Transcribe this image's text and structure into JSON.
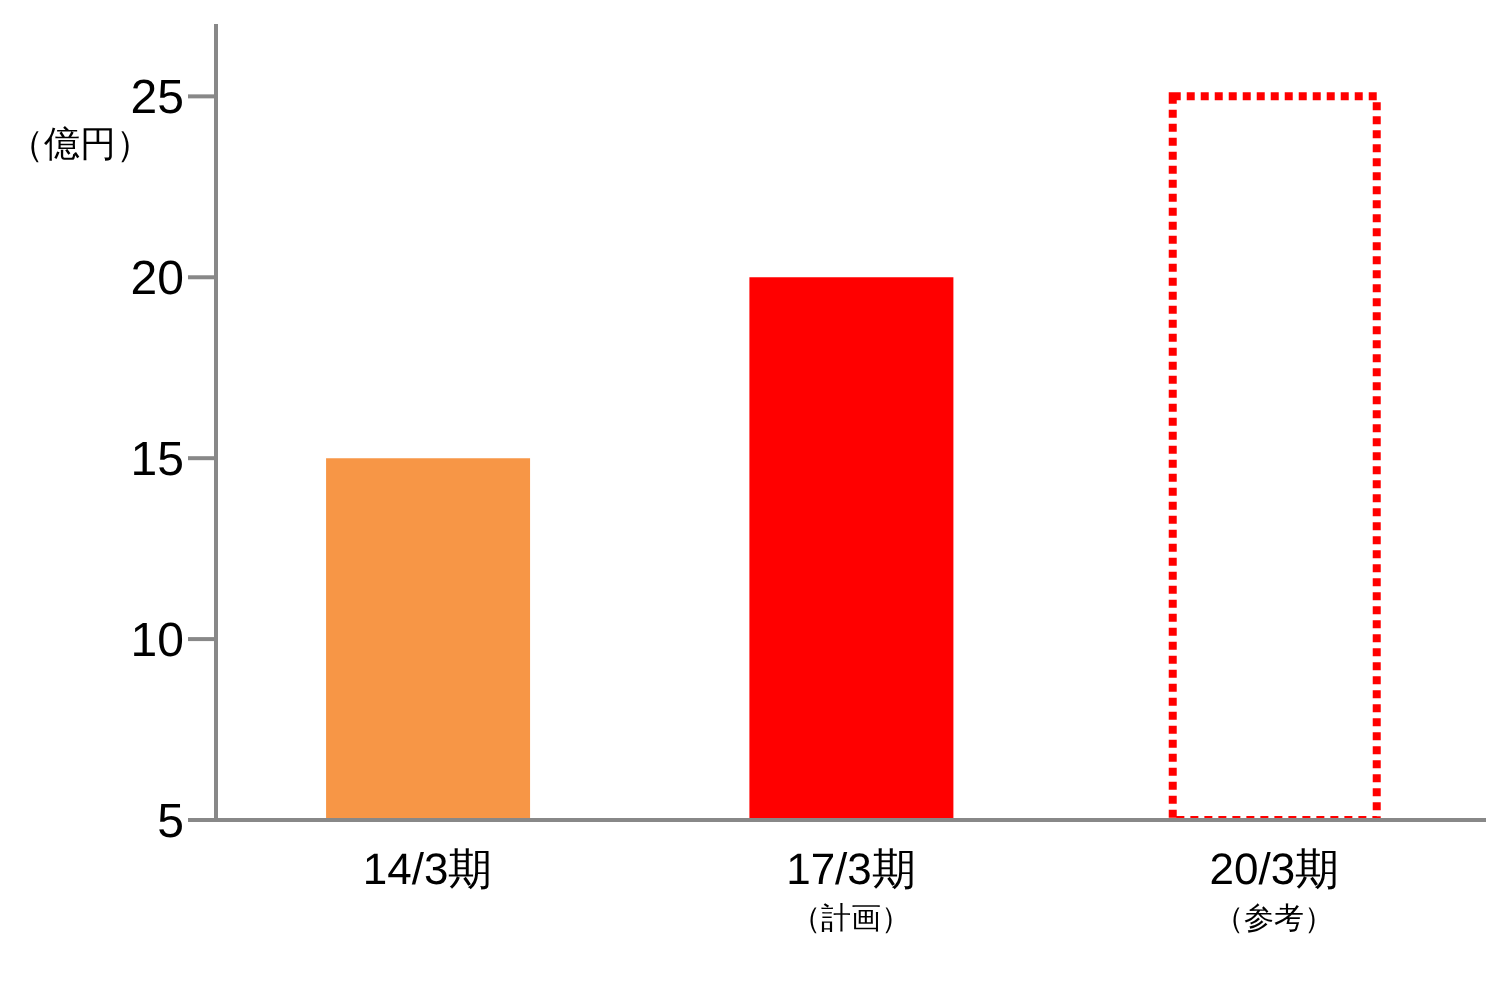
{
  "chart_data": {
    "type": "bar",
    "ylabel": "（億円）",
    "categories": [
      "14/3期",
      "17/3期（計画）",
      "20/3期（参考）"
    ],
    "stacked": true,
    "series": [
      {
        "colors": [
          "#f79646",
          "#ff0000",
          null
        ],
        "values": [
          15,
          20,
          null
        ]
      },
      {
        "color": "#ff0000",
        "line_style": "dotted",
        "values": [
          null,
          null,
          25
        ]
      }
    ],
    "ylim": [
      5,
      27
    ],
    "yticks": [
      5,
      10,
      15,
      20,
      25
    ],
    "grid": false,
    "legend": false
  }
}
